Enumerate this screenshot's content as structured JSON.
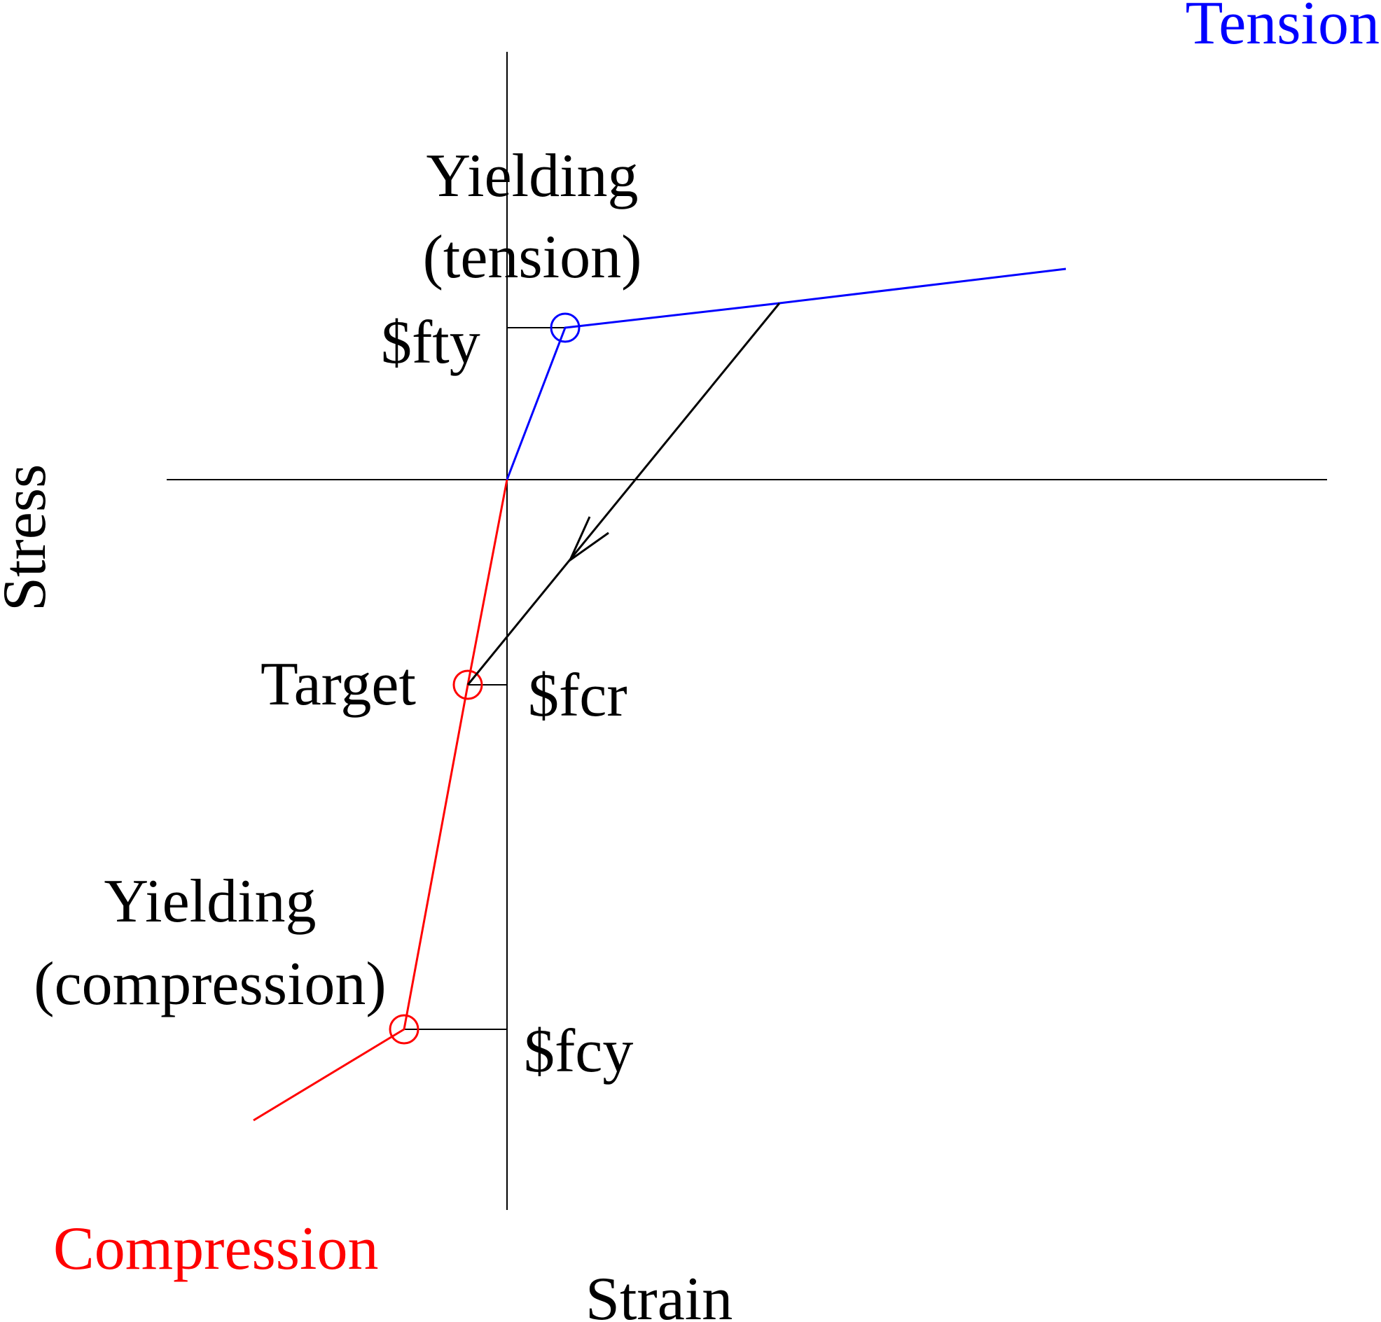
{
  "axes": {
    "x_label": "Strain",
    "y_label": "Stress"
  },
  "regions": {
    "tension": "Tension",
    "compression": "Compression"
  },
  "points": {
    "yield_tension": {
      "line1": "Yielding",
      "line2": "(tension)",
      "level": "$fty"
    },
    "target": {
      "label": "Target",
      "level": "$fcr"
    },
    "yield_compression": {
      "line1": "Yielding",
      "line2": "(compression)",
      "level": "$fcy"
    }
  },
  "colors": {
    "tension": "#0000ff",
    "compression": "#ff0000",
    "axis": "#000000",
    "unloading_path": "#000000"
  }
}
